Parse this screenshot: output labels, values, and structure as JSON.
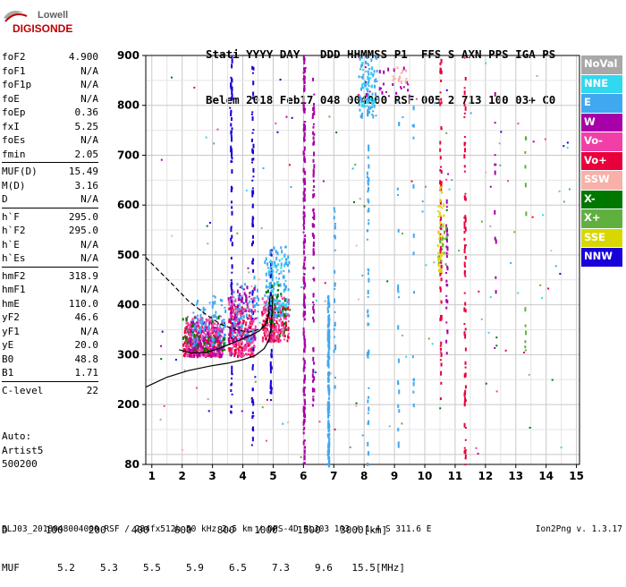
{
  "logo": {
    "line1": "Lowell",
    "line2": "DIGISONDE"
  },
  "header": {
    "labels": "Stati YYYY DAY   DDD HHMMSS P1  FFS S AXN PPS IGA PS",
    "values": "Belem 2018 Feb17 048 004000 RSF 005 2 713 100 03+ C0"
  },
  "params": {
    "group1": [
      {
        "k": "foF2",
        "v": "4.900"
      },
      {
        "k": "foF1",
        "v": "N/A"
      },
      {
        "k": "foF1p",
        "v": "N/A"
      },
      {
        "k": "foE",
        "v": "N/A"
      },
      {
        "k": "foEp",
        "v": "0.36"
      },
      {
        "k": "fxI",
        "v": "5.25"
      },
      {
        "k": "foEs",
        "v": "N/A"
      },
      {
        "k": "fmin",
        "v": "2.05"
      }
    ],
    "group2": [
      {
        "k": "MUF(D)",
        "v": "15.49"
      },
      {
        "k": "M(D)",
        "v": "3.16"
      },
      {
        "k": "D",
        "v": "N/A"
      }
    ],
    "group3": [
      {
        "k": "h`F",
        "v": "295.0"
      },
      {
        "k": "h`F2",
        "v": "295.0"
      },
      {
        "k": "h`E",
        "v": "N/A"
      },
      {
        "k": "h`Es",
        "v": "N/A"
      }
    ],
    "group4": [
      {
        "k": "hmF2",
        "v": "318.9"
      },
      {
        "k": "hmF1",
        "v": "N/A"
      },
      {
        "k": "hmE",
        "v": "110.0"
      },
      {
        "k": "yF2",
        "v": "46.6"
      },
      {
        "k": "yF1",
        "v": "N/A"
      },
      {
        "k": "yE",
        "v": "20.0"
      },
      {
        "k": "B0",
        "v": "48.8"
      },
      {
        "k": "B1",
        "v": "1.71"
      }
    ],
    "group5": [
      {
        "k": "C-level",
        "v": "22"
      }
    ]
  },
  "auto": {
    "line1": "Auto:",
    "line2": "Artist5",
    "line3": "500200"
  },
  "legend": [
    {
      "label": "NoVal",
      "color": "#a8a8a8"
    },
    {
      "label": "NNE",
      "color": "#30d8f0"
    },
    {
      "label": "E",
      "color": "#40a8f0"
    },
    {
      "label": "W",
      "color": "#a800a8"
    },
    {
      "label": "Vo-",
      "color": "#f040a8"
    },
    {
      "label": "Vo+",
      "color": "#e8003c"
    },
    {
      "label": "SSW",
      "color": "#f8b0a8"
    },
    {
      "label": "X-",
      "color": "#007800"
    },
    {
      "label": "X+",
      "color": "#60b040"
    },
    {
      "label": "SSE",
      "color": "#d8d800"
    },
    {
      "label": "NNW",
      "color": "#1800d8"
    }
  ],
  "muf_table": {
    "d_label": "D",
    "d_values": [
      "100",
      "200",
      "400",
      "600",
      "800",
      "1000",
      "1500",
      "3000",
      "[km]"
    ],
    "muf_label": "MUF",
    "muf_values": [
      "5.2",
      "5.3",
      "5.5",
      "5.9",
      "6.5",
      "7.3",
      "9.6",
      "15.5",
      "[MHz]"
    ]
  },
  "footer": "BLJ03_2018048004000.RSF / 284fx512h 50 kHz 2.5 km / DPS-4D BLJ03 103 / 1.4 S 311.6 E",
  "version": "Ion2Png v. 1.3.17",
  "chart_data": {
    "type": "scatter",
    "title": "",
    "xlabel": "",
    "ylabel": "",
    "xlim": [
      0.8,
      15.1
    ],
    "ylim": [
      80,
      900
    ],
    "x_ticks": [
      1,
      2,
      3,
      4,
      5,
      6,
      7,
      8,
      9,
      10,
      11,
      12,
      13,
      14,
      15
    ],
    "y_ticks": [
      200,
      300,
      400,
      500,
      600,
      700,
      800,
      900
    ],
    "y_tick_labels_extra": [
      80
    ],
    "grid": true,
    "traces": [
      {
        "name": "profile_solid",
        "style": "solid",
        "x": [
          0.8,
          1.5,
          2.2,
          2.9,
          3.5,
          4.0,
          4.4,
          4.7,
          4.85,
          4.92,
          4.95,
          4.97,
          4.99
        ],
        "y": [
          235,
          255,
          268,
          277,
          283,
          290,
          298,
          312,
          328,
          348,
          370,
          395,
          420
        ]
      },
      {
        "name": "trace_a",
        "style": "solid",
        "x": [
          1.9,
          2.3,
          2.8,
          3.2,
          3.6,
          4.0,
          4.3,
          4.55,
          4.75,
          4.85,
          4.9
        ],
        "y": [
          310,
          303,
          305,
          312,
          322,
          332,
          340,
          348,
          360,
          385,
          420
        ]
      },
      {
        "name": "trace_b",
        "style": "dashed",
        "x": [
          0.8,
          1.2,
          1.7,
          2.2,
          2.8,
          3.3,
          3.8,
          4.2,
          4.6,
          4.8,
          4.9
        ],
        "y": [
          495,
          470,
          440,
          408,
          380,
          360,
          350,
          345,
          352,
          368,
          390
        ]
      }
    ],
    "clusters": [
      {
        "color": "#e8003c",
        "x": [
          2.0,
          3.2
        ],
        "y": [
          300,
          360
        ],
        "n": 260
      },
      {
        "color": "#f040a8",
        "x": [
          2.1,
          3.3
        ],
        "y": [
          300,
          380
        ],
        "n": 200
      },
      {
        "color": "#a800a8",
        "x": [
          2.2,
          3.4
        ],
        "y": [
          300,
          370
        ],
        "n": 110
      },
      {
        "color": "#40a8f0",
        "x": [
          2.3,
          3.4
        ],
        "y": [
          320,
          420
        ],
        "n": 90
      },
      {
        "color": "#007800",
        "x": [
          2.0,
          3.4
        ],
        "y": [
          310,
          380
        ],
        "n": 40
      },
      {
        "color": "#e8003c",
        "x": [
          3.5,
          4.3
        ],
        "y": [
          300,
          400
        ],
        "n": 170
      },
      {
        "color": "#f040a8",
        "x": [
          3.5,
          4.4
        ],
        "y": [
          300,
          420
        ],
        "n": 130
      },
      {
        "color": "#40a8f0",
        "x": [
          3.6,
          4.5
        ],
        "y": [
          330,
          460
        ],
        "n": 90
      },
      {
        "color": "#a800a8",
        "x": [
          3.5,
          4.4
        ],
        "y": [
          330,
          440
        ],
        "n": 70
      },
      {
        "color": "#e8003c",
        "x": [
          4.6,
          5.5
        ],
        "y": [
          330,
          400
        ],
        "n": 120
      },
      {
        "color": "#f040a8",
        "x": [
          4.6,
          5.5
        ],
        "y": [
          330,
          420
        ],
        "n": 90
      },
      {
        "color": "#40a8f0",
        "x": [
          4.7,
          5.5
        ],
        "y": [
          380,
          520
        ],
        "n": 110
      },
      {
        "color": "#30d8f0",
        "x": [
          4.8,
          5.4
        ],
        "y": [
          400,
          500
        ],
        "n": 40
      },
      {
        "color": "#007800",
        "x": [
          4.7,
          5.4
        ],
        "y": [
          340,
          450
        ],
        "n": 30
      },
      {
        "color": "#40a8f0",
        "x": [
          7.8,
          8.4
        ],
        "y": [
          780,
          900
        ],
        "n": 70
      },
      {
        "color": "#30d8f0",
        "x": [
          7.9,
          8.3
        ],
        "y": [
          800,
          890
        ],
        "n": 30
      },
      {
        "color": "#a800a8",
        "x": [
          8.0,
          9.5
        ],
        "y": [
          820,
          880
        ],
        "n": 25
      },
      {
        "color": "#f8b0a8",
        "x": [
          8.9,
          9.4
        ],
        "y": [
          850,
          880
        ],
        "n": 15
      },
      {
        "color": "#d8d800",
        "x": [
          10.4,
          10.6
        ],
        "y": [
          470,
          640
        ],
        "n": 40
      },
      {
        "color": "#60b040",
        "x": [
          10.4,
          10.7
        ],
        "y": [
          480,
          560
        ],
        "n": 15
      }
    ],
    "columns": [
      {
        "color": "#1800d8",
        "x": 3.6,
        "y": [
          180,
          900
        ],
        "n": 90
      },
      {
        "color": "#1800d8",
        "x": 4.3,
        "y": [
          120,
          900
        ],
        "n": 70
      },
      {
        "color": "#1800d8",
        "x": 4.9,
        "y": [
          210,
          530
        ],
        "n": 60
      },
      {
        "color": "#a800a8",
        "x": 6.0,
        "y": [
          80,
          900
        ],
        "n": 200
      },
      {
        "color": "#a800a8",
        "x": 6.3,
        "y": [
          200,
          870
        ],
        "n": 80
      },
      {
        "color": "#40a8f0",
        "x": 6.8,
        "y": [
          80,
          420
        ],
        "n": 160
      },
      {
        "color": "#40a8f0",
        "x": 7.0,
        "y": [
          200,
          620
        ],
        "n": 25
      },
      {
        "color": "#40a8f0",
        "x": 8.1,
        "y": [
          80,
          900
        ],
        "n": 60
      },
      {
        "color": "#e8003c",
        "x": 10.5,
        "y": [
          200,
          900
        ],
        "n": 70
      },
      {
        "color": "#a800a8",
        "x": 10.7,
        "y": [
          300,
          620
        ],
        "n": 30
      },
      {
        "color": "#e8003c",
        "x": 11.3,
        "y": [
          80,
          900
        ],
        "n": 70
      },
      {
        "color": "#40a8f0",
        "x": 9.1,
        "y": [
          100,
          850
        ],
        "n": 20
      },
      {
        "color": "#40a8f0",
        "x": 9.6,
        "y": [
          200,
          850
        ],
        "n": 15
      },
      {
        "color": "#a800a8",
        "x": 12.3,
        "y": [
          250,
          850
        ],
        "n": 12
      },
      {
        "color": "#60b040",
        "x": 13.3,
        "y": [
          250,
          760
        ],
        "n": 12
      }
    ],
    "scatter_colors": [
      "#e8003c",
      "#f040a8",
      "#a800a8",
      "#40a8f0",
      "#30d8f0",
      "#007800",
      "#60b040",
      "#1800d8",
      "#f8b0a8",
      "#a8a8a8"
    ],
    "scatter_count": 160
  }
}
